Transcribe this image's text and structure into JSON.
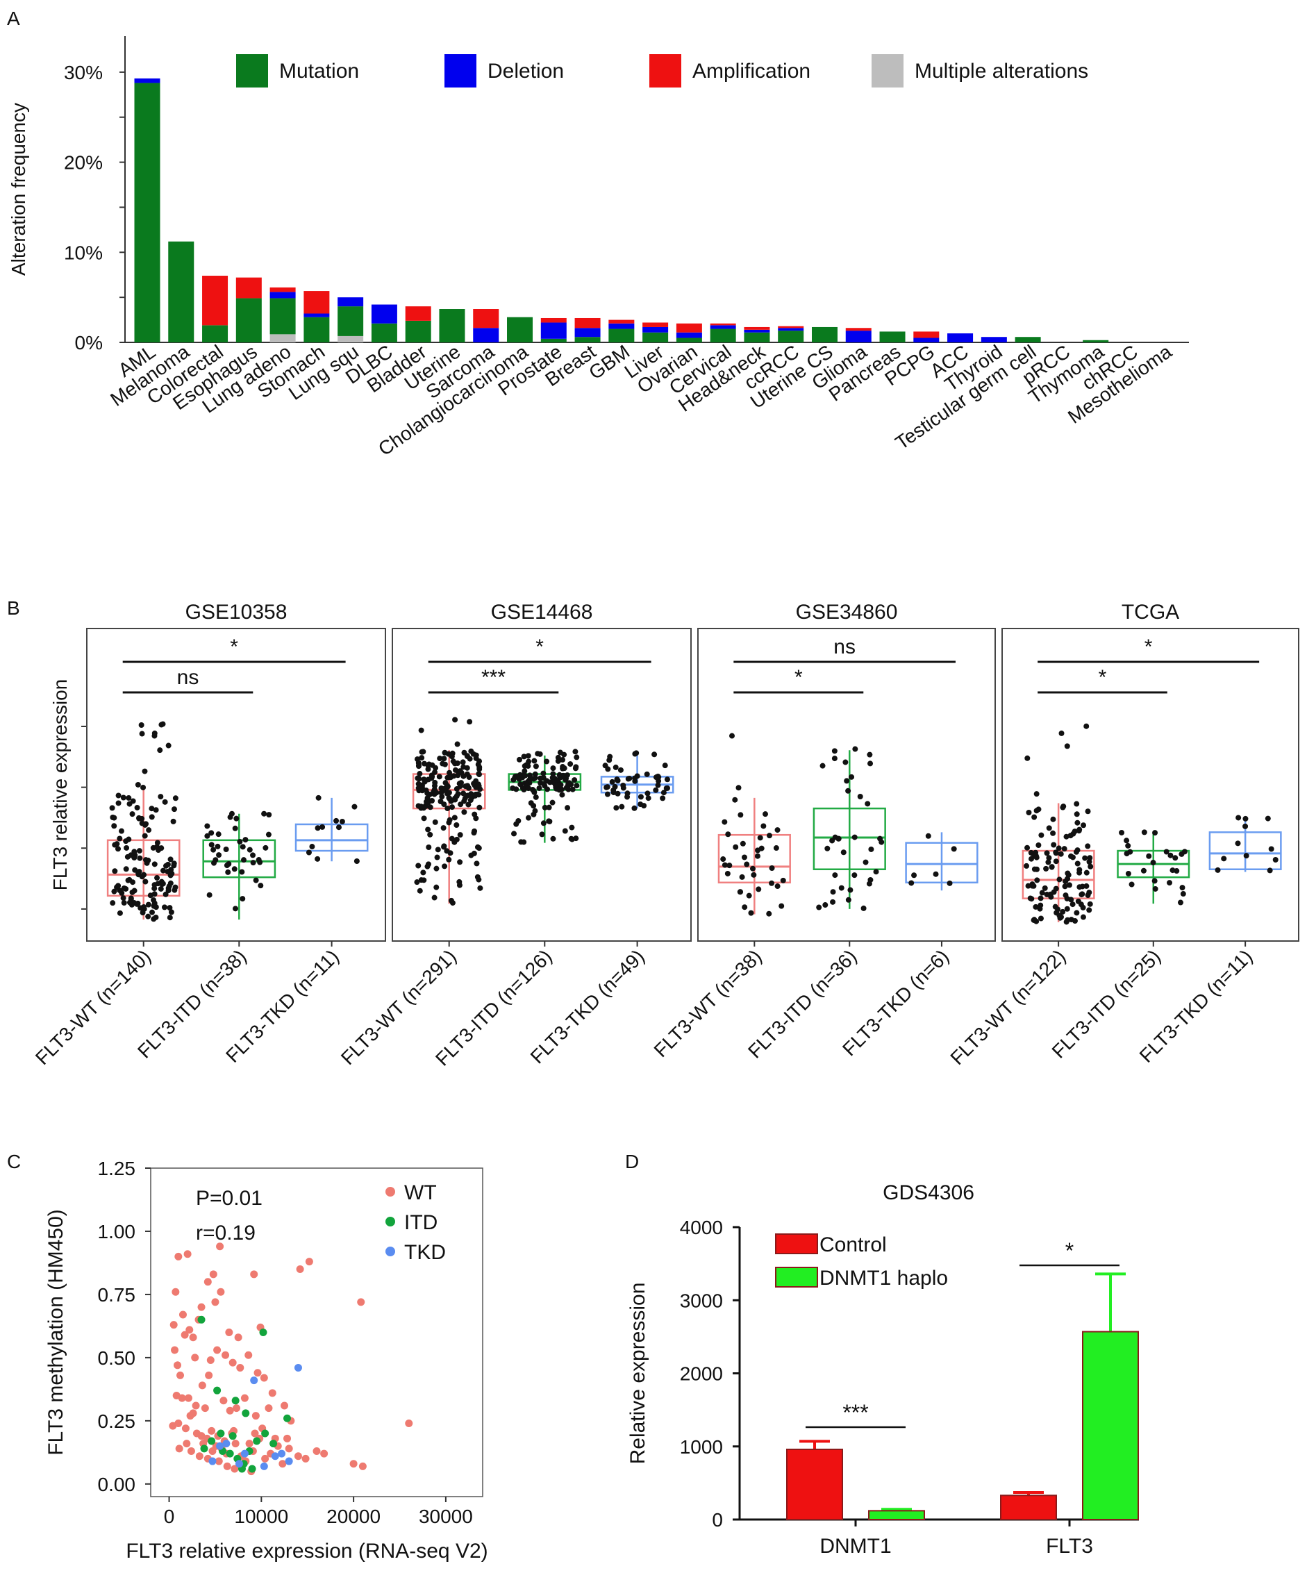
{
  "colors": {
    "mutation": "#0a7a1e",
    "deletion": "#0000ee",
    "amplification": "#ee1111",
    "multiple": "#bdbdbd",
    "wt": "#f08080",
    "itd": "#22aa44",
    "tkd": "#6a9cf0",
    "wt_dot": "#ee7a70",
    "itd_dot": "#12a43c",
    "tkd_dot": "#5a8cf0",
    "control": "#ee1111",
    "haplo": "#22ee22"
  },
  "labels": {
    "panel_a": "A",
    "panel_b": "B",
    "panel_c": "C",
    "panel_d": "D"
  },
  "chart_data": [
    {
      "panel": "A",
      "type": "bar",
      "stacked": true,
      "ylabel": "Alteration frequency",
      "ylim": [
        0,
        34
      ],
      "yticks": [
        0,
        10,
        20,
        30
      ],
      "ytick_labels": [
        "0%",
        "10%",
        "20%",
        "30%"
      ],
      "legend": [
        "Mutation",
        "Deletion",
        "Amplification",
        "Multiple alterations"
      ],
      "categories": [
        "AML",
        "Melanoma",
        "Colorectal",
        "Esophagus",
        "Lung adeno",
        "Stomach",
        "Lung squ",
        "DLBC",
        "Bladder",
        "Uterine",
        "Sarcoma",
        "Cholangiocarcinoma",
        "Prostate",
        "Breast",
        "GBM",
        "Liver",
        "Ovarian",
        "Cervical",
        "Head&neck",
        "ccRCC",
        "Uterine CS",
        "Glioma",
        "Pancreas",
        "PCPG",
        "ACC",
        "Thyroid",
        "Testicular germ cell",
        "pRCC",
        "Thymoma",
        "chRCC",
        "Mesothelioma"
      ],
      "series": [
        {
          "name": "Multiple alterations",
          "values": [
            0,
            0,
            0,
            0,
            0.9,
            0,
            0.7,
            0,
            0,
            0,
            0,
            0,
            0,
            0,
            0,
            0,
            0,
            0,
            0,
            0,
            0,
            0,
            0,
            0,
            0,
            0,
            0,
            0,
            0,
            0,
            0
          ]
        },
        {
          "name": "Mutation",
          "values": [
            28.8,
            11.2,
            1.9,
            4.9,
            4.0,
            2.8,
            3.3,
            2.1,
            2.4,
            3.7,
            0,
            2.8,
            0.4,
            0.6,
            1.5,
            1.1,
            0.5,
            1.5,
            1.1,
            1.3,
            1.7,
            0,
            1.2,
            0,
            0,
            0,
            0.6,
            0,
            0.25,
            0,
            0
          ]
        },
        {
          "name": "Deletion",
          "values": [
            0.5,
            0,
            0,
            0,
            0.7,
            0.4,
            1.0,
            2.1,
            0,
            0,
            1.6,
            0,
            1.8,
            1.0,
            0.6,
            0.6,
            0.6,
            0.4,
            0.3,
            0.3,
            0,
            1.3,
            0,
            0.5,
            1.0,
            0.6,
            0,
            0,
            0,
            0,
            0
          ]
        },
        {
          "name": "Amplification",
          "values": [
            0,
            0,
            5.5,
            2.3,
            0.5,
            2.5,
            0,
            0,
            1.6,
            0,
            2.1,
            0,
            0.5,
            1.1,
            0.4,
            0.5,
            1.0,
            0.2,
            0.3,
            0.2,
            0,
            0.3,
            0,
            0.7,
            0,
            0,
            0,
            0,
            0,
            0,
            0
          ]
        }
      ]
    },
    {
      "panel": "B",
      "type": "box",
      "ylabel": "FLT3 relative expression",
      "groups": [
        "FLT3-WT",
        "FLT3-ITD",
        "FLT3-TKD"
      ],
      "datasets": [
        {
          "title": "GSE10358",
          "n_labels": [
            "FLT3-WT (n=140)",
            "FLT3-ITD (n=38)",
            "FLT3-TKD (n=11)"
          ],
          "n": [
            140,
            38,
            11
          ],
          "boxes": [
            {
              "q1": 0.15,
              "median": 0.23,
              "q3": 0.36,
              "wlo": 0.06,
              "whi": 0.56,
              "dmax": 0.86
            },
            {
              "q1": 0.22,
              "median": 0.28,
              "q3": 0.36,
              "wlo": 0.06,
              "whi": 0.46,
              "dmax": 0.46
            },
            {
              "q1": 0.32,
              "median": 0.36,
              "q3": 0.42,
              "wlo": 0.28,
              "whi": 0.52,
              "dmax": 0.52
            }
          ],
          "comparisons": [
            {
              "label": "ns",
              "from": 0,
              "to": 1,
              "level": 0
            },
            {
              "label": "*",
              "from": 0,
              "to": 2,
              "level": 1
            }
          ]
        },
        {
          "title": "GSE14468",
          "n_labels": [
            "FLT3-WT (n=291)",
            "FLT3-ITD (n=126)",
            "FLT3-TKD (n=49)"
          ],
          "n": [
            291,
            126,
            49
          ],
          "boxes": [
            {
              "q1": 0.48,
              "median": 0.55,
              "q3": 0.61,
              "wlo": 0.12,
              "whi": 0.7,
              "dmax": 0.82
            },
            {
              "q1": 0.55,
              "median": 0.58,
              "q3": 0.61,
              "wlo": 0.35,
              "whi": 0.68,
              "dmax": 0.7
            },
            {
              "q1": 0.54,
              "median": 0.57,
              "q3": 0.6,
              "wlo": 0.48,
              "whi": 0.68,
              "dmax": 0.69
            }
          ],
          "comparisons": [
            {
              "label": "***",
              "from": 0,
              "to": 1,
              "level": 0
            },
            {
              "label": "*",
              "from": 0,
              "to": 2,
              "level": 1
            }
          ]
        },
        {
          "title": "GSE34860",
          "n_labels": [
            "FLT3-WT (n=38)",
            "FLT3-ITD (n=36)",
            "FLT3-TKD (n=6)"
          ],
          "n": [
            38,
            36,
            6
          ],
          "boxes": [
            {
              "q1": 0.2,
              "median": 0.26,
              "q3": 0.38,
              "wlo": 0.08,
              "whi": 0.52,
              "dmax": 0.9
            },
            {
              "q1": 0.25,
              "median": 0.37,
              "q3": 0.48,
              "wlo": 0.1,
              "whi": 0.7,
              "dmax": 0.72
            },
            {
              "q1": 0.2,
              "median": 0.27,
              "q3": 0.35,
              "wlo": 0.17,
              "whi": 0.39,
              "dmax": 0.39
            }
          ],
          "comparisons": [
            {
              "label": "*",
              "from": 0,
              "to": 1,
              "level": 0
            },
            {
              "label": "ns",
              "from": 0,
              "to": 2,
              "level": 1
            }
          ]
        },
        {
          "title": "TCGA",
          "n_labels": [
            "FLT3-WT (n=122)",
            "FLT3-ITD (n=25)",
            "FLT3-TKD (n=11)"
          ],
          "n": [
            122,
            25,
            11
          ],
          "boxes": [
            {
              "q1": 0.14,
              "median": 0.21,
              "q3": 0.32,
              "wlo": 0.05,
              "whi": 0.5,
              "dmax": 0.82
            },
            {
              "q1": 0.22,
              "median": 0.27,
              "q3": 0.32,
              "wlo": 0.12,
              "whi": 0.39,
              "dmax": 0.39
            },
            {
              "q1": 0.25,
              "median": 0.31,
              "q3": 0.39,
              "wlo": 0.24,
              "whi": 0.44,
              "dmax": 0.45
            }
          ],
          "comparisons": [
            {
              "label": "*",
              "from": 0,
              "to": 1,
              "level": 0
            },
            {
              "label": "*",
              "from": 0,
              "to": 2,
              "level": 1
            }
          ]
        }
      ]
    },
    {
      "panel": "C",
      "type": "scatter",
      "xlabel": "FLT3 relative expression (RNA-seq V2)",
      "ylabel": "FLT3 methylation (HM450)",
      "xlim": [
        -2000,
        34000
      ],
      "ylim": [
        -0.05,
        1.25
      ],
      "xticks": [
        0,
        10000,
        20000,
        30000
      ],
      "yticks": [
        0.0,
        0.25,
        0.5,
        0.75,
        1.0,
        1.25
      ],
      "ytick_labels": [
        "0.00",
        "0.25",
        "0.50",
        "0.75",
        "1.00",
        "1.25"
      ],
      "stats": [
        "P=0.01",
        "r=0.19"
      ],
      "legend": [
        "WT",
        "ITD",
        "TKD"
      ],
      "series": [
        {
          "name": "WT",
          "points": [
            [
              1000,
              0.9
            ],
            [
              2000,
              0.91
            ],
            [
              5500,
              0.94
            ],
            [
              4200,
              0.8
            ],
            [
              4800,
              0.83
            ],
            [
              5600,
              0.76
            ],
            [
              9200,
              0.83
            ],
            [
              14200,
              0.85
            ],
            [
              15200,
              0.88
            ],
            [
              20800,
              0.72
            ],
            [
              26000,
              0.24
            ],
            [
              20000,
              0.08
            ],
            [
              21000,
              0.07
            ],
            [
              500,
              0.63
            ],
            [
              1500,
              0.67
            ],
            [
              2200,
              0.61
            ],
            [
              2600,
              0.58
            ],
            [
              3200,
              0.65
            ],
            [
              700,
              0.76
            ],
            [
              900,
              0.47
            ],
            [
              1200,
              0.43
            ],
            [
              800,
              0.35
            ],
            [
              1400,
              0.34
            ],
            [
              2100,
              0.34
            ],
            [
              2900,
              0.31
            ],
            [
              3600,
              0.39
            ],
            [
              4300,
              0.43
            ],
            [
              4500,
              0.49
            ],
            [
              5200,
              0.53
            ],
            [
              6100,
              0.51
            ],
            [
              6900,
              0.48
            ],
            [
              7700,
              0.46
            ],
            [
              8600,
              0.51
            ],
            [
              9600,
              0.44
            ],
            [
              10300,
              0.42
            ],
            [
              11200,
              0.36
            ],
            [
              12500,
              0.31
            ],
            [
              13200,
              0.25
            ],
            [
              400,
              0.23
            ],
            [
              1000,
              0.24
            ],
            [
              1800,
              0.22
            ],
            [
              2300,
              0.27
            ],
            [
              3000,
              0.2
            ],
            [
              3500,
              0.19
            ],
            [
              4100,
              0.18
            ],
            [
              4600,
              0.21
            ],
            [
              5100,
              0.15
            ],
            [
              5700,
              0.14
            ],
            [
              6200,
              0.12
            ],
            [
              6800,
              0.2
            ],
            [
              7200,
              0.16
            ],
            [
              7800,
              0.11
            ],
            [
              8300,
              0.09
            ],
            [
              9100,
              0.13
            ],
            [
              9800,
              0.18
            ],
            [
              10400,
              0.1
            ],
            [
              11000,
              0.12
            ],
            [
              11800,
              0.15
            ],
            [
              12300,
              0.08
            ],
            [
              13000,
              0.14
            ],
            [
              14000,
              0.11
            ],
            [
              14800,
              0.1
            ],
            [
              16000,
              0.13
            ],
            [
              16800,
              0.12
            ],
            [
              2400,
              0.13
            ],
            [
              3300,
              0.11
            ],
            [
              4200,
              0.1
            ],
            [
              5400,
              0.09
            ],
            [
              6300,
              0.07
            ],
            [
              7100,
              0.06
            ],
            [
              8000,
              0.08
            ],
            [
              8900,
              0.05
            ],
            [
              2600,
              0.28
            ],
            [
              3900,
              0.3
            ],
            [
              5900,
              0.33
            ],
            [
              6600,
              0.29
            ],
            [
              7300,
              0.3
            ],
            [
              8200,
              0.34
            ],
            [
              9400,
              0.27
            ],
            [
              10800,
              0.3
            ],
            [
              600,
              0.53
            ],
            [
              1700,
              0.59
            ],
            [
              5000,
              0.72
            ],
            [
              3500,
              0.7
            ],
            [
              6500,
              0.6
            ],
            [
              7500,
              0.58
            ],
            [
              9900,
              0.62
            ],
            [
              2800,
              0.5
            ],
            [
              1100,
              0.14
            ],
            [
              1900,
              0.16
            ],
            [
              3700,
              0.16
            ],
            [
              4700,
              0.13
            ],
            [
              5300,
              0.19
            ],
            [
              6000,
              0.17
            ],
            [
              7000,
              0.21
            ],
            [
              8700,
              0.16
            ],
            [
              9300,
              0.2
            ],
            [
              10100,
              0.22
            ],
            [
              11500,
              0.18
            ],
            [
              12800,
              0.18
            ]
          ]
        },
        {
          "name": "ITD",
          "points": [
            [
              3500,
              0.65
            ],
            [
              10200,
              0.6
            ],
            [
              5200,
              0.37
            ],
            [
              7200,
              0.33
            ],
            [
              8300,
              0.28
            ],
            [
              12800,
              0.26
            ],
            [
              3800,
              0.14
            ],
            [
              4600,
              0.17
            ],
            [
              5800,
              0.13
            ],
            [
              6600,
              0.12
            ],
            [
              7400,
              0.1
            ],
            [
              8100,
              0.08
            ],
            [
              8700,
              0.13
            ],
            [
              9500,
              0.17
            ],
            [
              10400,
              0.2
            ],
            [
              11300,
              0.16
            ],
            [
              7900,
              0.06
            ],
            [
              9000,
              0.06
            ],
            [
              6900,
              0.19
            ],
            [
              5600,
              0.2
            ]
          ]
        },
        {
          "name": "TKD",
          "points": [
            [
              14000,
              0.46
            ],
            [
              9200,
              0.41
            ],
            [
              5500,
              0.15
            ],
            [
              6200,
              0.16
            ],
            [
              4700,
              0.09
            ],
            [
              7600,
              0.08
            ],
            [
              11500,
              0.11
            ],
            [
              12200,
              0.12
            ],
            [
              13000,
              0.09
            ],
            [
              8200,
              0.12
            ],
            [
              10300,
              0.07
            ]
          ]
        }
      ]
    },
    {
      "panel": "D",
      "type": "bar",
      "title": "GDS4306",
      "ylabel": "Relative expression",
      "ylim": [
        0,
        4000
      ],
      "yticks": [
        0,
        1000,
        2000,
        3000,
        4000
      ],
      "categories": [
        "DNMT1",
        "FLT3"
      ],
      "series": [
        {
          "name": "Control",
          "values": [
            960,
            330
          ],
          "errors": [
            110,
            40
          ]
        },
        {
          "name": "DNMT1 haplo",
          "values": [
            120,
            2570
          ],
          "errors": [
            20,
            790
          ]
        }
      ],
      "significance": [
        "***",
        "*"
      ]
    }
  ]
}
